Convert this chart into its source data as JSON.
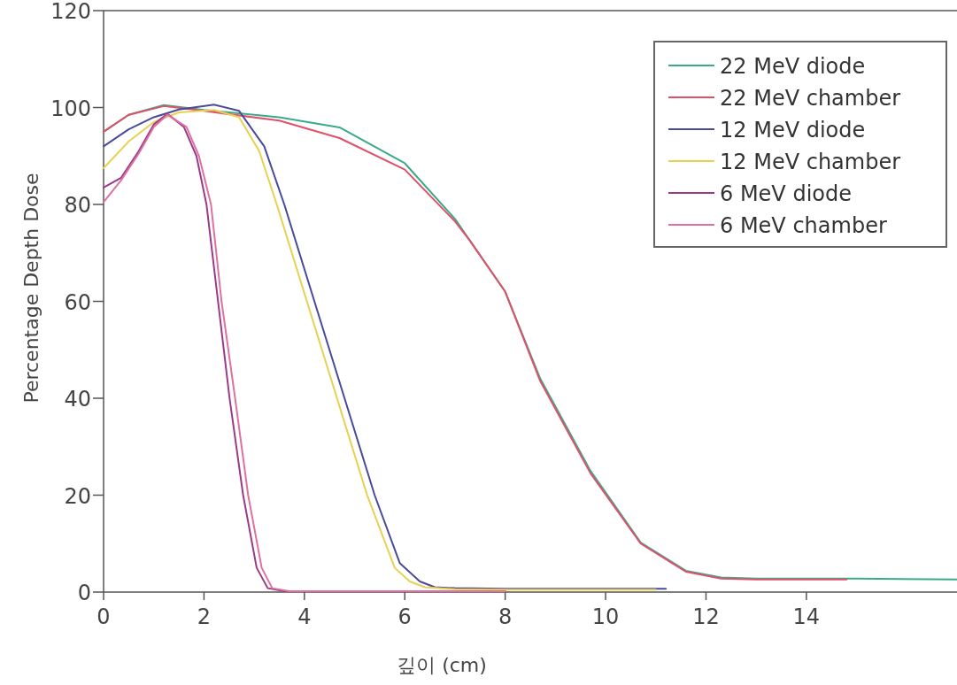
{
  "chart_data": {
    "type": "line",
    "xlabel": "깊이 (cm)",
    "ylabel": "Percentage Depth Dose",
    "xlim": [
      0,
      17
    ],
    "ylim": [
      0,
      120
    ],
    "xticks": [
      0,
      2,
      4,
      6,
      8,
      10,
      12,
      14
    ],
    "yticks": [
      0,
      20,
      40,
      60,
      80,
      100,
      120
    ],
    "grid": false,
    "legend": "top right",
    "marker": "none",
    "line_style": "solid",
    "series": [
      {
        "name": "22 MeV diode",
        "color": "#3aaa8a",
        "x": [
          0,
          0.5,
          1.2,
          2,
          3.5,
          4.7,
          6,
          7,
          7.3,
          8,
          8.7,
          9.7,
          10.7,
          11.6,
          12.3,
          13,
          15,
          17
        ],
        "values": [
          95,
          98.5,
          100.5,
          99.5,
          98,
          95.9,
          88.5,
          77,
          72.5,
          62,
          44,
          25,
          10.2,
          4.4,
          3,
          2.8,
          2.8,
          2.6
        ]
      },
      {
        "name": "22 MeV chamber",
        "color": "#e0506a",
        "x": [
          0,
          0.5,
          1.2,
          2,
          3.5,
          4.7,
          6,
          7,
          7.3,
          8,
          8.7,
          9.7,
          10.7,
          11.6,
          12.3,
          13,
          14.8
        ],
        "values": [
          95,
          98.5,
          100.3,
          99.3,
          97.3,
          93.7,
          87.2,
          76.5,
          72.5,
          62,
          43.5,
          24.5,
          10,
          4.2,
          2.8,
          2.6,
          2.6
        ]
      },
      {
        "name": "12 MeV diode",
        "color": "#4a4a9a",
        "x": [
          0,
          0.5,
          1,
          1.5,
          2.2,
          2.7,
          3.2,
          3.6,
          4.2,
          4.8,
          5.4,
          5.9,
          6.3,
          6.6,
          7,
          8,
          11.2
        ],
        "values": [
          92,
          95.5,
          98,
          99.6,
          100.6,
          99.3,
          92,
          80,
          60,
          40,
          20,
          6,
          2.2,
          1,
          0.8,
          0.7,
          0.7
        ]
      },
      {
        "name": "12 MeV chamber",
        "color": "#e8d050",
        "x": [
          0,
          0.5,
          1,
          1.5,
          2.2,
          2.7,
          3.1,
          3.45,
          4.05,
          4.65,
          5.25,
          5.8,
          6.1,
          6.4,
          7,
          8,
          11
        ],
        "values": [
          87.5,
          93,
          97,
          99,
          99.5,
          98,
          91,
          80,
          60,
          40,
          20,
          5,
          2.2,
          1,
          0.6,
          0.5,
          0.5
        ]
      },
      {
        "name": "6 MeV diode",
        "color": "#9a3a8a",
        "x": [
          0,
          0.35,
          0.7,
          1,
          1.27,
          1.6,
          1.85,
          2.05,
          2.28,
          2.51,
          2.78,
          3.05,
          3.27,
          3.6,
          5,
          8
        ],
        "values": [
          83.5,
          85.5,
          91,
          96.5,
          98.7,
          96,
          90,
          80,
          60,
          40,
          20,
          5,
          0.8,
          0.2,
          0.2,
          0.2
        ]
      },
      {
        "name": "6 MeV chamber",
        "color": "#e070a0",
        "x": [
          0,
          0.35,
          0.7,
          1,
          1.27,
          1.65,
          1.9,
          2.14,
          2.35,
          2.62,
          2.88,
          3.15,
          3.36,
          3.7,
          5,
          8
        ],
        "values": [
          80.5,
          85,
          90.5,
          96,
          98.5,
          96,
          90,
          80,
          60,
          40,
          20,
          5,
          0.8,
          0.2,
          0.2,
          0.2
        ]
      }
    ]
  }
}
